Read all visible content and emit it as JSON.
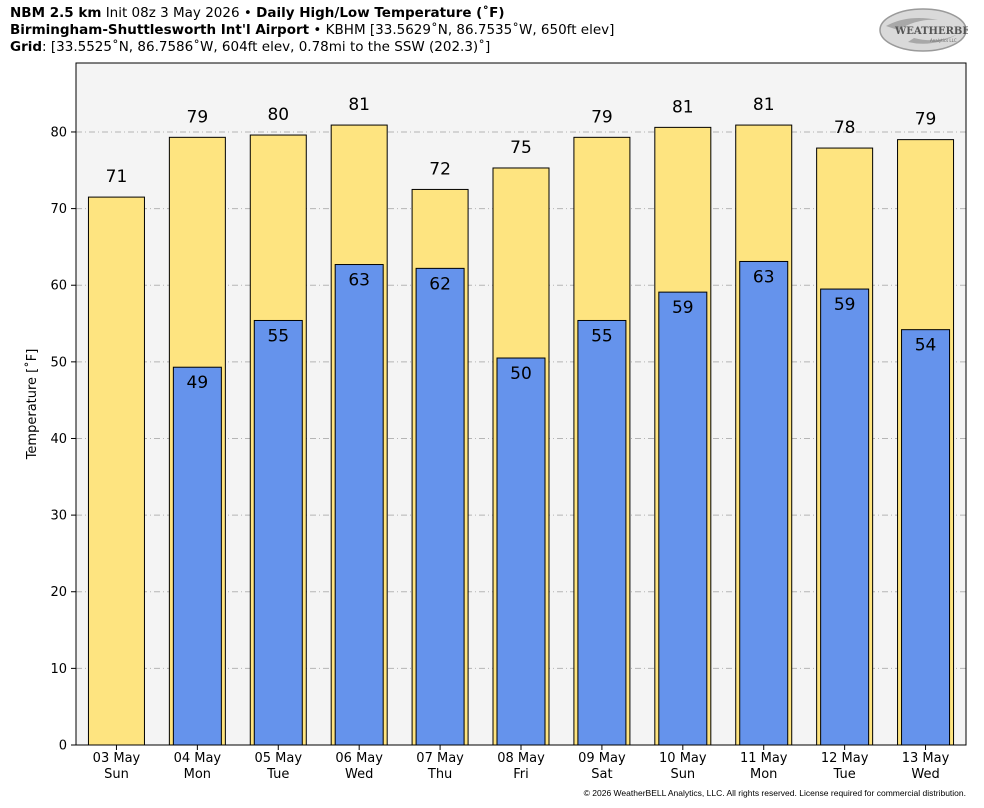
{
  "header": {
    "line1": {
      "model": "NBM 2.5 km",
      "init": "Init 08z 3 May 2026",
      "sep": "•",
      "title": "Daily High/Low Temperature (˚F)"
    },
    "line2": {
      "station": "Birmingham-Shuttlesworth Int'l Airport",
      "sep": "•",
      "details": "KBHM [33.5629˚N, 86.7535˚W, 650ft elev]"
    },
    "line3": {
      "label": "Grid",
      "details": ": [33.5525˚N, 86.7586˚W, 604ft elev, 0.78mi to the SSW (202.3)˚]"
    }
  },
  "logo": {
    "text_main": "WEATHERBELL",
    "text_sub": "Analytics LLC"
  },
  "copyright": "© 2026 WeatherBELL Analytics, LLC. All rights reserved. License required for commercial distribution.",
  "chart_data": {
    "type": "bar",
    "title": "Daily High/Low Temperature (˚F)",
    "xlabel": "",
    "ylabel": "Temperature [˚F]",
    "ylim": [
      0,
      89
    ],
    "yticks": [
      0,
      10,
      20,
      30,
      40,
      50,
      60,
      70,
      80
    ],
    "grid": true,
    "categories": [
      [
        "03 May",
        "Sun"
      ],
      [
        "04 May",
        "Mon"
      ],
      [
        "05 May",
        "Tue"
      ],
      [
        "06 May",
        "Wed"
      ],
      [
        "07 May",
        "Thu"
      ],
      [
        "08 May",
        "Fri"
      ],
      [
        "09 May",
        "Sat"
      ],
      [
        "10 May",
        "Sun"
      ],
      [
        "11 May",
        "Mon"
      ],
      [
        "12 May",
        "Tue"
      ],
      [
        "13 May",
        "Wed"
      ]
    ],
    "series": [
      {
        "role": "high",
        "color": "#fee480",
        "values": [
          71.5,
          79.3,
          79.6,
          80.9,
          72.5,
          75.3,
          79.3,
          80.6,
          80.9,
          77.9,
          79.0
        ],
        "labels": [
          "71",
          "79",
          "80",
          "81",
          "72",
          "75",
          "79",
          "81",
          "81",
          "78",
          "79"
        ]
      },
      {
        "role": "low",
        "color": "#6593ec",
        "values": [
          null,
          49.3,
          55.4,
          62.7,
          62.2,
          50.5,
          55.4,
          59.1,
          63.1,
          59.5,
          54.2
        ],
        "labels": [
          null,
          "49",
          "55",
          "63",
          "62",
          "50",
          "55",
          "59",
          "63",
          "59",
          "54"
        ]
      }
    ],
    "colors": {
      "plot_bg": "#f4f4f4",
      "grid": "#b5b5b5"
    }
  }
}
